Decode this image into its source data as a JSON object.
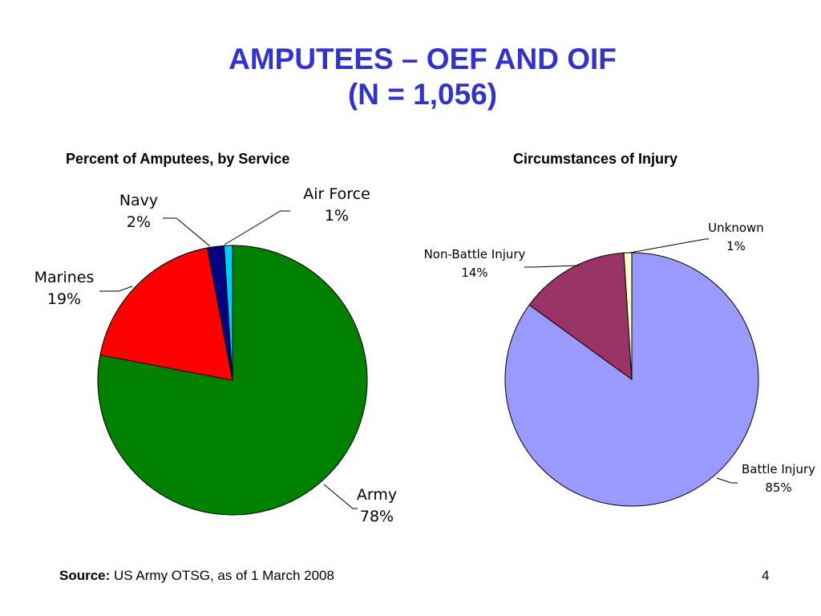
{
  "slide": {
    "title_line1": "AMPUTEES – OEF AND OIF",
    "title_line2": "(N = 1,056)",
    "source_label": "Source:",
    "source_text": " US Army OTSG, as of 1 March 2008",
    "page_number": "4"
  },
  "chart_data": [
    {
      "type": "pie",
      "title": "Percent of Amputees, by Service",
      "slices": [
        {
          "name": "Army",
          "value": 78,
          "label": "78%",
          "color": "#008000"
        },
        {
          "name": "Marines",
          "value": 19,
          "label": "19%",
          "color": "#ff0000"
        },
        {
          "name": "Navy",
          "value": 2,
          "label": "2%",
          "color": "#000080"
        },
        {
          "name": "Air Force",
          "value": 1,
          "label": "1%",
          "color": "#00ccff"
        }
      ],
      "start": "12 o'clock",
      "direction": "clockwise",
      "labels": "outside with leader lines"
    },
    {
      "type": "pie",
      "title": "Circumstances of Injury",
      "slices": [
        {
          "name": "Battle Injury",
          "value": 85,
          "label": "85%",
          "color": "#9999ff"
        },
        {
          "name": "Non-Battle Injury",
          "value": 14,
          "label": "14%",
          "color": "#993366"
        },
        {
          "name": "Unknown",
          "value": 1,
          "label": "1%",
          "color": "#ffffcc"
        }
      ],
      "start": "12 o'clock",
      "direction": "clockwise",
      "labels": "outside with leader lines"
    }
  ]
}
